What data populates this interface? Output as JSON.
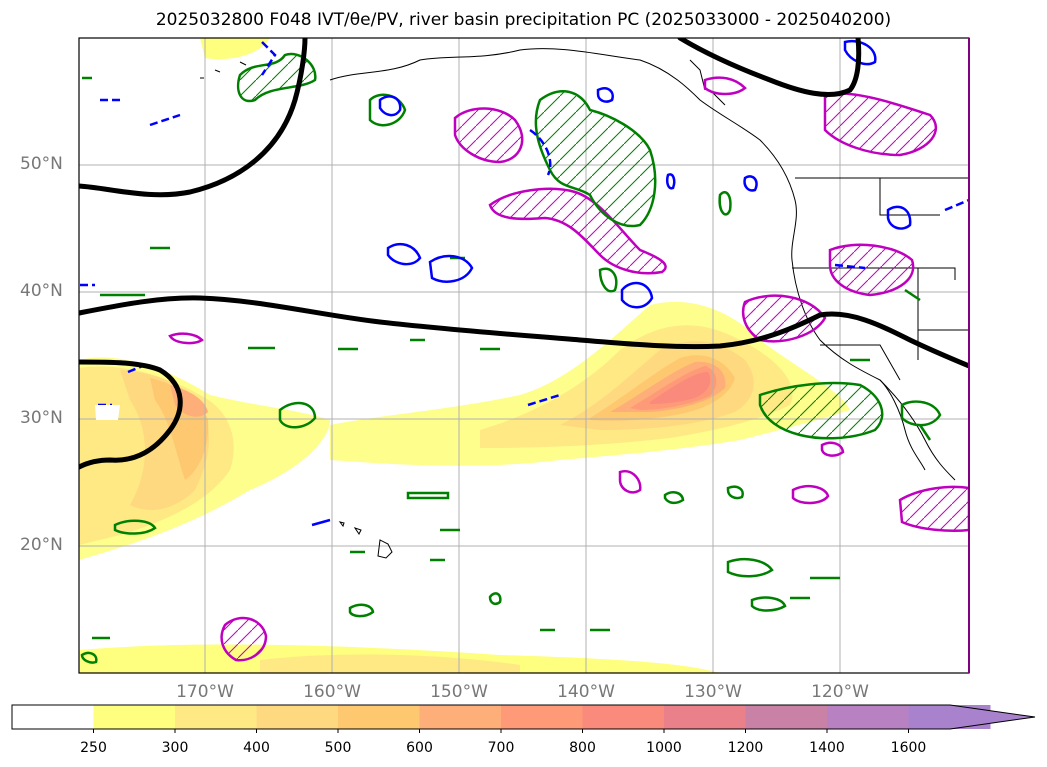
{
  "title": "2025032800 F048 IVT/θe/PV, river basin precipitation PC (2025033000 - 2025040200)",
  "map": {
    "lat_ticks": [
      {
        "label": "50°N",
        "value": 50
      },
      {
        "label": "40°N",
        "value": 40
      },
      {
        "label": "30°N",
        "value": 30
      },
      {
        "label": "20°N",
        "value": 20
      }
    ],
    "lon_ticks": [
      {
        "label": "170°W",
        "value": -170
      },
      {
        "label": "160°W",
        "value": -160
      },
      {
        "label": "150°W",
        "value": -150
      },
      {
        "label": "140°W",
        "value": -140
      },
      {
        "label": "130°W",
        "value": -130
      },
      {
        "label": "120°W",
        "value": -120
      }
    ],
    "extent": {
      "lon_min": -180,
      "lon_max": -110,
      "lat_min": 10,
      "lat_max": 60
    },
    "grid": true,
    "colors": {
      "pv_contour": "#000000",
      "positive_contour": "#008000",
      "negative_contour": "#0000ff",
      "precip_contour": "#bf00bf",
      "coastline": "#000000",
      "gridline": "#b0b0b0",
      "tick_label": "#777777"
    }
  },
  "colorbar": {
    "labels": [
      "250",
      "300",
      "400",
      "500",
      "600",
      "700",
      "800",
      "1000",
      "1200",
      "1400",
      "1600"
    ],
    "colors": [
      "#ffffff",
      "#fefe7f",
      "#fee985",
      "#fed97f",
      "#fec870",
      "#feae78",
      "#fe9a78",
      "#f98a7c",
      "#e9808a",
      "#c982a6",
      "#b882c2",
      "#a882cc"
    ],
    "extend": "max"
  }
}
